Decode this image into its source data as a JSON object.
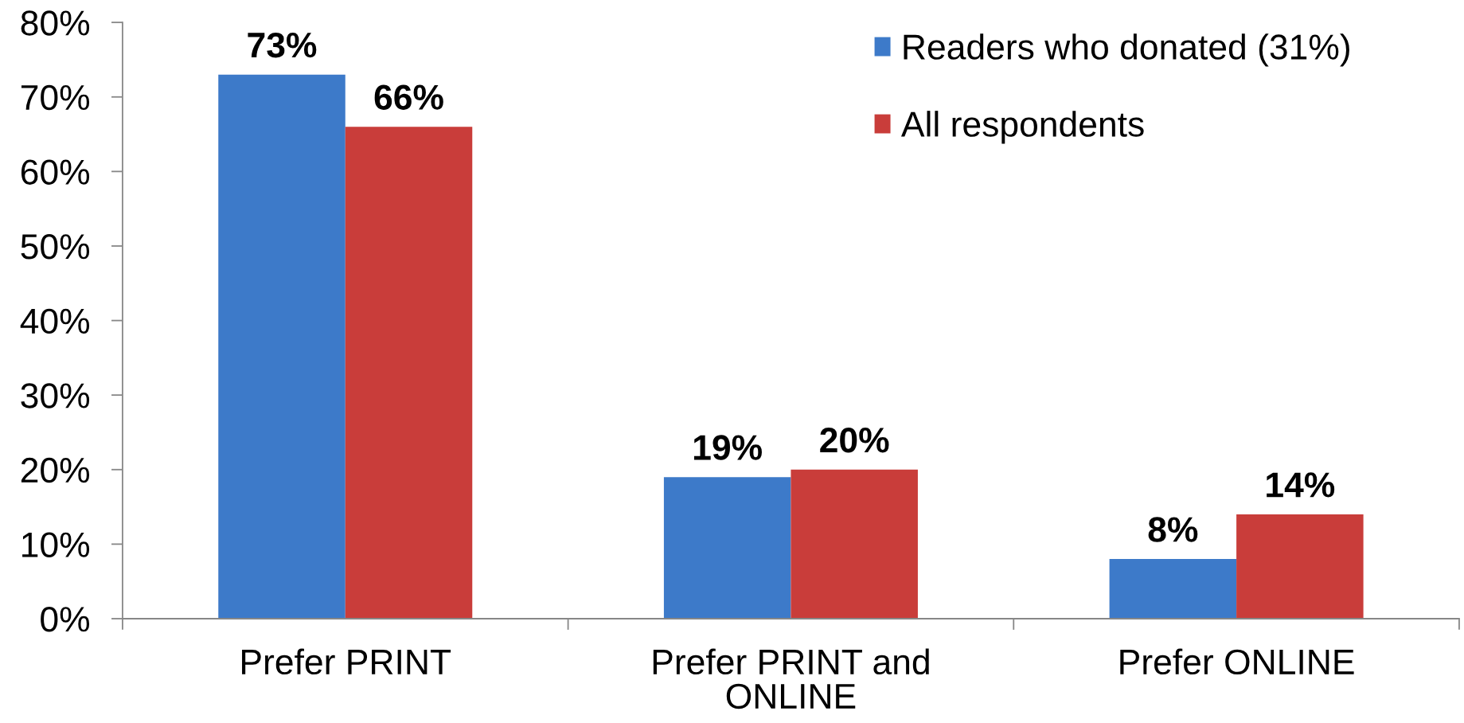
{
  "chart_data": {
    "type": "bar",
    "categories": [
      "Prefer PRINT",
      "Prefer PRINT and\nONLINE",
      "Prefer ONLINE"
    ],
    "series": [
      {
        "name": "Readers who donated (31%)",
        "color": "#3d7ac9",
        "values": [
          73,
          19,
          8
        ],
        "value_labels": [
          "73%",
          "19%",
          "8%"
        ]
      },
      {
        "name": "All respondents",
        "color": "#c93d3a",
        "values": [
          66,
          20,
          14
        ],
        "value_labels": [
          "66%",
          "20%",
          "14%"
        ]
      }
    ],
    "ylim": [
      0,
      80
    ],
    "yticks": [
      {
        "value": 0,
        "label": "0%"
      },
      {
        "value": 10,
        "label": "10%"
      },
      {
        "value": 20,
        "label": "20%"
      },
      {
        "value": 30,
        "label": "30%"
      },
      {
        "value": 40,
        "label": "40%"
      },
      {
        "value": 50,
        "label": "50%"
      },
      {
        "value": 60,
        "label": "60%"
      },
      {
        "value": 70,
        "label": "70%"
      },
      {
        "value": 80,
        "label": "80%"
      }
    ],
    "legend": "top right"
  }
}
